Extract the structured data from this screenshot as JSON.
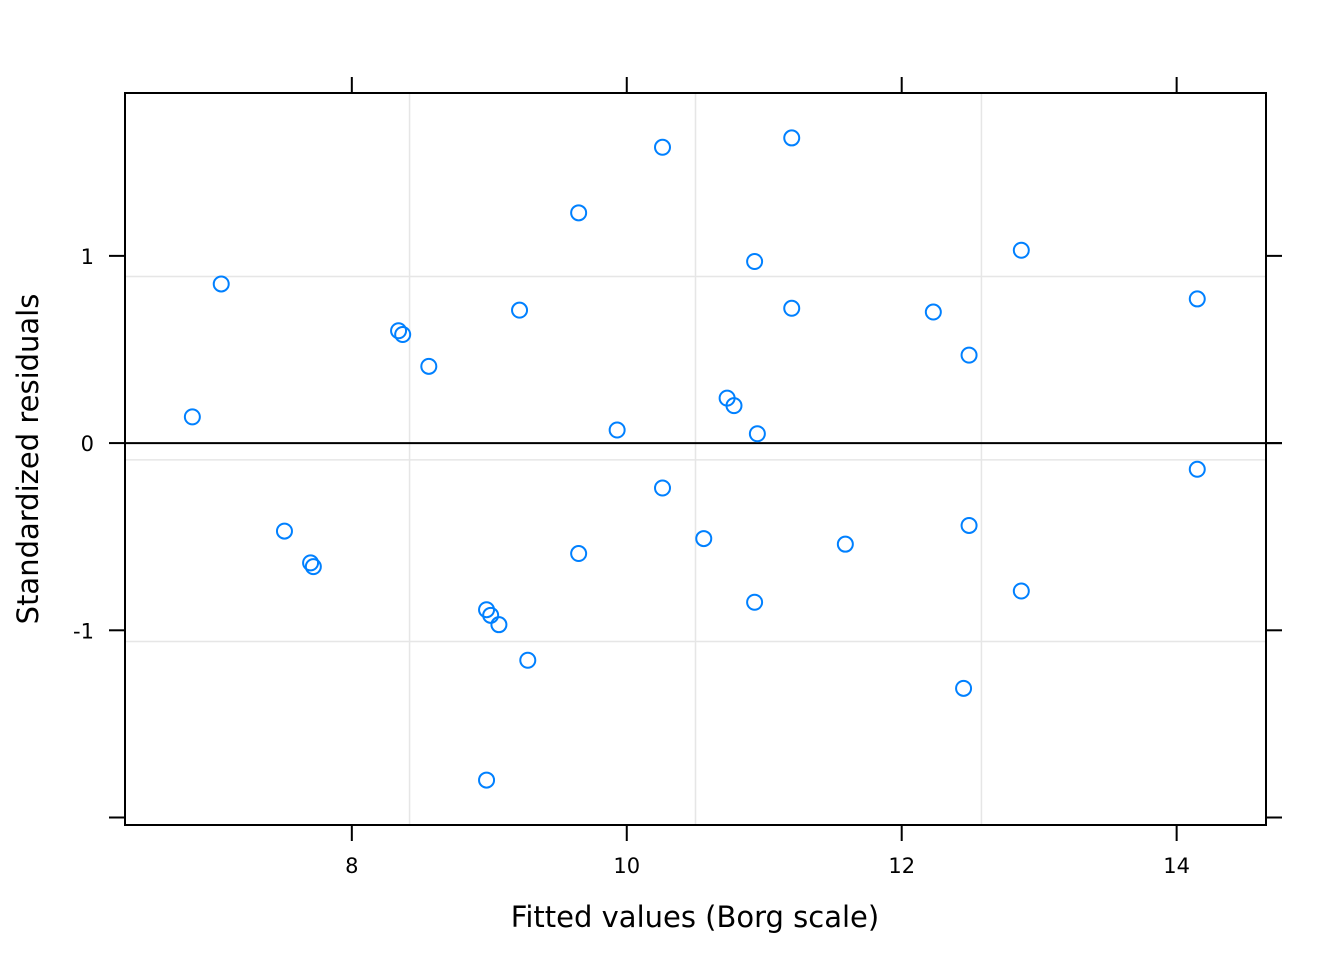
{
  "chart_data": {
    "type": "scatter",
    "title": "",
    "xlabel": "Fitted values (Borg scale)",
    "ylabel": "Standardized residuals",
    "xlim": [
      6.35,
      14.65
    ],
    "ylim": [
      -2.04,
      1.87
    ],
    "x_ticks": [
      8,
      10,
      12,
      14
    ],
    "x_tick_labels": [
      "8",
      "10",
      "12",
      "14"
    ],
    "y_ticks": [
      -2,
      -1,
      0,
      1
    ],
    "y_tick_labels": [
      "",
      "-1",
      "0",
      "1"
    ],
    "grid": true,
    "x_gridlines": [
      8.42,
      10.5,
      12.58
    ],
    "y_gridlines": [
      -1.06,
      -0.09,
      0.89
    ],
    "reference_line_y": 0,
    "point_color": "#0080ff",
    "points": [
      {
        "x": 6.84,
        "y": 0.14
      },
      {
        "x": 7.05,
        "y": 0.85
      },
      {
        "x": 7.51,
        "y": -0.47
      },
      {
        "x": 7.7,
        "y": -0.64
      },
      {
        "x": 7.72,
        "y": -0.66
      },
      {
        "x": 8.34,
        "y": 0.6
      },
      {
        "x": 8.37,
        "y": 0.58
      },
      {
        "x": 8.56,
        "y": 0.41
      },
      {
        "x": 8.98,
        "y": -0.89
      },
      {
        "x": 9.01,
        "y": -0.92
      },
      {
        "x": 9.07,
        "y": -0.97
      },
      {
        "x": 8.98,
        "y": -1.8
      },
      {
        "x": 9.22,
        "y": 0.71
      },
      {
        "x": 9.28,
        "y": -1.16
      },
      {
        "x": 9.65,
        "y": 1.23
      },
      {
        "x": 9.65,
        "y": -0.59
      },
      {
        "x": 9.93,
        "y": 0.07
      },
      {
        "x": 10.26,
        "y": 1.58
      },
      {
        "x": 10.26,
        "y": -0.24
      },
      {
        "x": 10.56,
        "y": -0.51
      },
      {
        "x": 10.73,
        "y": 0.24
      },
      {
        "x": 10.78,
        "y": 0.2
      },
      {
        "x": 10.93,
        "y": 0.97
      },
      {
        "x": 10.93,
        "y": -0.85
      },
      {
        "x": 10.95,
        "y": 0.05
      },
      {
        "x": 11.2,
        "y": 1.63
      },
      {
        "x": 11.2,
        "y": 0.72
      },
      {
        "x": 11.59,
        "y": -0.54
      },
      {
        "x": 12.23,
        "y": 0.7
      },
      {
        "x": 12.49,
        "y": 0.47
      },
      {
        "x": 12.49,
        "y": -0.44
      },
      {
        "x": 12.45,
        "y": -1.31
      },
      {
        "x": 12.87,
        "y": 1.03
      },
      {
        "x": 12.87,
        "y": -0.79
      },
      {
        "x": 14.15,
        "y": 0.77
      },
      {
        "x": 14.15,
        "y": -0.14
      }
    ]
  }
}
